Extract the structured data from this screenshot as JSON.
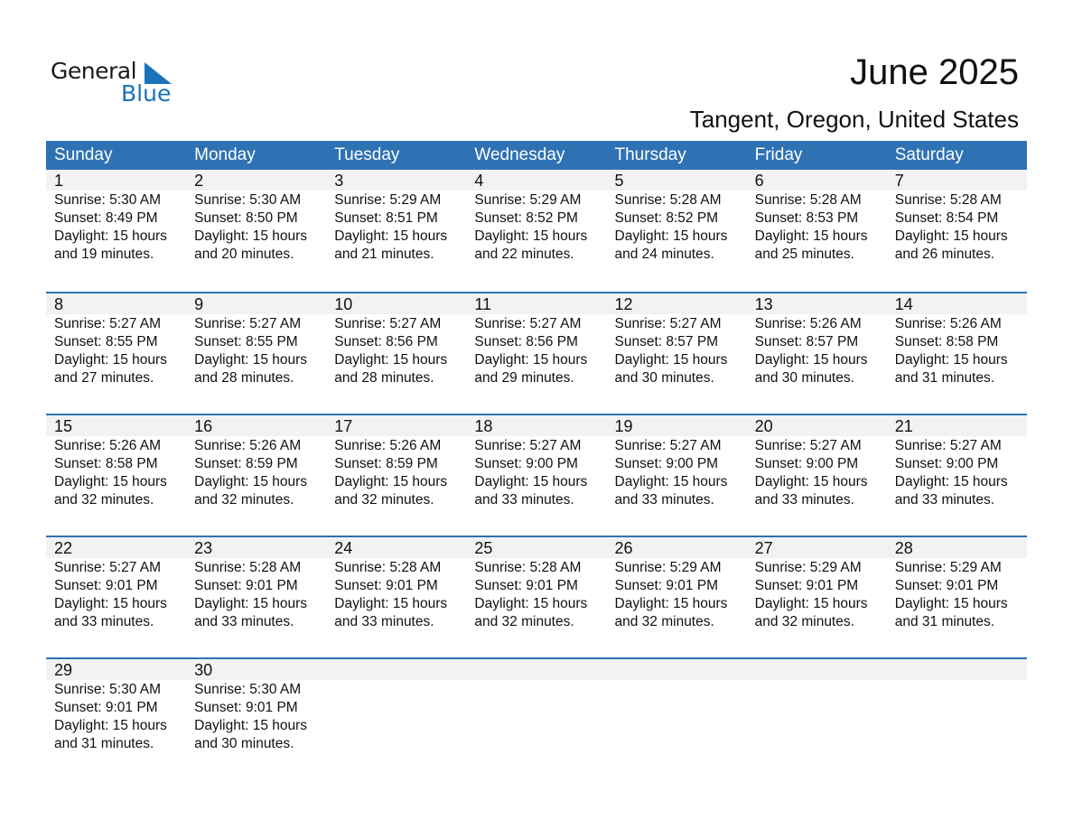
{
  "logo": {
    "text1": "General",
    "text2": "Blue",
    "color": "#1a72ba"
  },
  "title": "June 2025",
  "subtitle": "Tangent, Oregon, United States",
  "colors": {
    "header": "#2E72B4",
    "date_bar": "#f2f2f2"
  },
  "weekdays": [
    "Sunday",
    "Monday",
    "Tuesday",
    "Wednesday",
    "Thursday",
    "Friday",
    "Saturday"
  ],
  "weeks": [
    [
      {
        "d": "1",
        "sr": "Sunrise: 5:30 AM",
        "ss": "Sunset: 8:49 PM",
        "dl": "Daylight: 15 hours",
        "dm": "and 19 minutes."
      },
      {
        "d": "2",
        "sr": "Sunrise: 5:30 AM",
        "ss": "Sunset: 8:50 PM",
        "dl": "Daylight: 15 hours",
        "dm": "and 20 minutes."
      },
      {
        "d": "3",
        "sr": "Sunrise: 5:29 AM",
        "ss": "Sunset: 8:51 PM",
        "dl": "Daylight: 15 hours",
        "dm": "and 21 minutes."
      },
      {
        "d": "4",
        "sr": "Sunrise: 5:29 AM",
        "ss": "Sunset: 8:52 PM",
        "dl": "Daylight: 15 hours",
        "dm": "and 22 minutes."
      },
      {
        "d": "5",
        "sr": "Sunrise: 5:28 AM",
        "ss": "Sunset: 8:52 PM",
        "dl": "Daylight: 15 hours",
        "dm": "and 24 minutes."
      },
      {
        "d": "6",
        "sr": "Sunrise: 5:28 AM",
        "ss": "Sunset: 8:53 PM",
        "dl": "Daylight: 15 hours",
        "dm": "and 25 minutes."
      },
      {
        "d": "7",
        "sr": "Sunrise: 5:28 AM",
        "ss": "Sunset: 8:54 PM",
        "dl": "Daylight: 15 hours",
        "dm": "and 26 minutes."
      }
    ],
    [
      {
        "d": "8",
        "sr": "Sunrise: 5:27 AM",
        "ss": "Sunset: 8:55 PM",
        "dl": "Daylight: 15 hours",
        "dm": "and 27 minutes."
      },
      {
        "d": "9",
        "sr": "Sunrise: 5:27 AM",
        "ss": "Sunset: 8:55 PM",
        "dl": "Daylight: 15 hours",
        "dm": "and 28 minutes."
      },
      {
        "d": "10",
        "sr": "Sunrise: 5:27 AM",
        "ss": "Sunset: 8:56 PM",
        "dl": "Daylight: 15 hours",
        "dm": "and 28 minutes."
      },
      {
        "d": "11",
        "sr": "Sunrise: 5:27 AM",
        "ss": "Sunset: 8:56 PM",
        "dl": "Daylight: 15 hours",
        "dm": "and 29 minutes."
      },
      {
        "d": "12",
        "sr": "Sunrise: 5:27 AM",
        "ss": "Sunset: 8:57 PM",
        "dl": "Daylight: 15 hours",
        "dm": "and 30 minutes."
      },
      {
        "d": "13",
        "sr": "Sunrise: 5:26 AM",
        "ss": "Sunset: 8:57 PM",
        "dl": "Daylight: 15 hours",
        "dm": "and 30 minutes."
      },
      {
        "d": "14",
        "sr": "Sunrise: 5:26 AM",
        "ss": "Sunset: 8:58 PM",
        "dl": "Daylight: 15 hours",
        "dm": "and 31 minutes."
      }
    ],
    [
      {
        "d": "15",
        "sr": "Sunrise: 5:26 AM",
        "ss": "Sunset: 8:58 PM",
        "dl": "Daylight: 15 hours",
        "dm": "and 32 minutes."
      },
      {
        "d": "16",
        "sr": "Sunrise: 5:26 AM",
        "ss": "Sunset: 8:59 PM",
        "dl": "Daylight: 15 hours",
        "dm": "and 32 minutes."
      },
      {
        "d": "17",
        "sr": "Sunrise: 5:26 AM",
        "ss": "Sunset: 8:59 PM",
        "dl": "Daylight: 15 hours",
        "dm": "and 32 minutes."
      },
      {
        "d": "18",
        "sr": "Sunrise: 5:27 AM",
        "ss": "Sunset: 9:00 PM",
        "dl": "Daylight: 15 hours",
        "dm": "and 33 minutes."
      },
      {
        "d": "19",
        "sr": "Sunrise: 5:27 AM",
        "ss": "Sunset: 9:00 PM",
        "dl": "Daylight: 15 hours",
        "dm": "and 33 minutes."
      },
      {
        "d": "20",
        "sr": "Sunrise: 5:27 AM",
        "ss": "Sunset: 9:00 PM",
        "dl": "Daylight: 15 hours",
        "dm": "and 33 minutes."
      },
      {
        "d": "21",
        "sr": "Sunrise: 5:27 AM",
        "ss": "Sunset: 9:00 PM",
        "dl": "Daylight: 15 hours",
        "dm": "and 33 minutes."
      }
    ],
    [
      {
        "d": "22",
        "sr": "Sunrise: 5:27 AM",
        "ss": "Sunset: 9:01 PM",
        "dl": "Daylight: 15 hours",
        "dm": "and 33 minutes."
      },
      {
        "d": "23",
        "sr": "Sunrise: 5:28 AM",
        "ss": "Sunset: 9:01 PM",
        "dl": "Daylight: 15 hours",
        "dm": "and 33 minutes."
      },
      {
        "d": "24",
        "sr": "Sunrise: 5:28 AM",
        "ss": "Sunset: 9:01 PM",
        "dl": "Daylight: 15 hours",
        "dm": "and 33 minutes."
      },
      {
        "d": "25",
        "sr": "Sunrise: 5:28 AM",
        "ss": "Sunset: 9:01 PM",
        "dl": "Daylight: 15 hours",
        "dm": "and 32 minutes."
      },
      {
        "d": "26",
        "sr": "Sunrise: 5:29 AM",
        "ss": "Sunset: 9:01 PM",
        "dl": "Daylight: 15 hours",
        "dm": "and 32 minutes."
      },
      {
        "d": "27",
        "sr": "Sunrise: 5:29 AM",
        "ss": "Sunset: 9:01 PM",
        "dl": "Daylight: 15 hours",
        "dm": "and 32 minutes."
      },
      {
        "d": "28",
        "sr": "Sunrise: 5:29 AM",
        "ss": "Sunset: 9:01 PM",
        "dl": "Daylight: 15 hours",
        "dm": "and 31 minutes."
      }
    ],
    [
      {
        "d": "29",
        "sr": "Sunrise: 5:30 AM",
        "ss": "Sunset: 9:01 PM",
        "dl": "Daylight: 15 hours",
        "dm": "and 31 minutes."
      },
      {
        "d": "30",
        "sr": "Sunrise: 5:30 AM",
        "ss": "Sunset: 9:01 PM",
        "dl": "Daylight: 15 hours",
        "dm": "and 30 minutes."
      },
      null,
      null,
      null,
      null,
      null
    ]
  ]
}
